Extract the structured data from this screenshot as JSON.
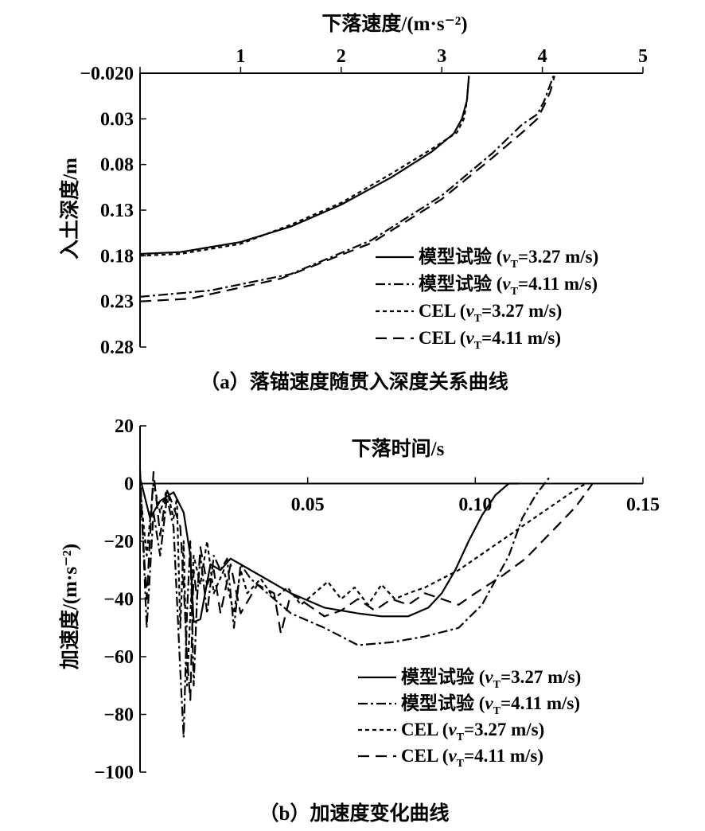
{
  "chart_data": [
    {
      "type": "line",
      "title": "下落速度/(m·s⁻²)",
      "caption": "（a）落锚速度随贯入深度关系曲线",
      "xlabel": "下落速度/(m·s⁻²)",
      "ylabel": "入土深度/m",
      "xlim": [
        0,
        5
      ],
      "ylim": [
        -0.02,
        0.28
      ],
      "x_ticks": [
        0,
        1,
        2,
        3,
        4,
        5
      ],
      "x_tick_labels": [
        "",
        "1",
        "2",
        "3",
        "4",
        "5"
      ],
      "y_ticks": [
        -0.02,
        0.03,
        0.08,
        0.13,
        0.18,
        0.23,
        0.28
      ],
      "y_tick_labels": [
        "−0.020",
        "0.03",
        "0.08",
        "0.13",
        "0.18",
        "0.23",
        "0.28"
      ],
      "legend_position": "bottom-right",
      "series": [
        {
          "name": "模型试验",
          "vT": "3.27 m/s",
          "style": "solid",
          "x": [
            0.0,
            0.4,
            1.0,
            1.5,
            2.0,
            2.5,
            2.9,
            3.12,
            3.2,
            3.25,
            3.27
          ],
          "y": [
            0.178,
            0.176,
            0.165,
            0.148,
            0.124,
            0.094,
            0.066,
            0.046,
            0.03,
            0.01,
            -0.017
          ]
        },
        {
          "name": "模型试验",
          "vT": "4.11 m/s",
          "style": "dashdot",
          "x": [
            0.0,
            0.7,
            1.5,
            2.3,
            3.0,
            3.5,
            3.8,
            3.95,
            4.02,
            4.07,
            4.11
          ],
          "y": [
            0.225,
            0.218,
            0.2,
            0.163,
            0.114,
            0.068,
            0.036,
            0.025,
            0.01,
            -0.005,
            -0.017
          ]
        },
        {
          "name": "CEL",
          "vT": "3.27 m/s",
          "style": "dotted",
          "x": [
            0.0,
            0.4,
            1.0,
            1.5,
            2.0,
            2.5,
            2.9,
            3.15,
            3.22,
            3.25,
            3.27
          ],
          "y": [
            0.18,
            0.178,
            0.167,
            0.146,
            0.122,
            0.09,
            0.063,
            0.045,
            0.03,
            0.01,
            -0.017
          ]
        },
        {
          "name": "CEL",
          "vT": "4.11 m/s",
          "style": "dashed",
          "x": [
            0.0,
            0.5,
            1.4,
            2.3,
            3.0,
            3.5,
            3.8,
            3.95,
            4.02,
            4.08,
            4.12
          ],
          "y": [
            0.23,
            0.227,
            0.205,
            0.166,
            0.118,
            0.073,
            0.045,
            0.03,
            0.015,
            0.0,
            -0.017
          ]
        }
      ],
      "legend": [
        {
          "text": "模型试验 (",
          "v": "v",
          "sub": "T",
          "value": "=3.27 m/s)",
          "style": "solid"
        },
        {
          "text": "模型试验 (",
          "v": "v",
          "sub": "T",
          "value": "=4.11 m/s)",
          "style": "dashdot"
        },
        {
          "text": "CEL (",
          "v": "v",
          "sub": "T",
          "value": "=3.27 m/s)",
          "style": "dotted"
        },
        {
          "text": "CEL (",
          "v": "v",
          "sub": "T",
          "value": "=4.11 m/s)",
          "style": "dashed"
        }
      ]
    },
    {
      "type": "line",
      "title": "下落时间/s",
      "caption": "（b）加速度变化曲线",
      "xlabel": "下落时间/s",
      "ylabel": "加速度/(m·s⁻²)",
      "xlim": [
        0,
        0.15
      ],
      "ylim": [
        -100,
        20
      ],
      "x_ticks": [
        0,
        0.05,
        0.1,
        0.15
      ],
      "x_tick_labels": [
        "",
        "0.05",
        "0.10",
        "0.15"
      ],
      "y_ticks": [
        20,
        0,
        -20,
        -40,
        -60,
        -80,
        -100
      ],
      "y_tick_labels": [
        "20",
        "0",
        "−20",
        "−40",
        "−60",
        "−80",
        "−100"
      ],
      "legend_position": "bottom-right",
      "series": [
        {
          "name": "模型试验",
          "vT": "3.27 m/s",
          "style": "solid",
          "t": [
            0,
            0.003,
            0.006,
            0.01,
            0.013,
            0.015,
            0.016,
            0.018,
            0.021,
            0.024,
            0.027,
            0.03,
            0.036,
            0.045,
            0.055,
            0.065,
            0.072,
            0.08,
            0.086,
            0.09,
            0.094,
            0.098,
            0.102,
            0.106,
            0.11,
            0.113
          ],
          "a": [
            2,
            -12,
            -6,
            -3,
            -10,
            -25,
            -48,
            -47,
            -28,
            -30,
            -26,
            -28,
            -32,
            -38,
            -43,
            -45,
            -46,
            -46,
            -43,
            -38,
            -30,
            -20,
            -11,
            -4,
            0,
            0
          ]
        },
        {
          "name": "模型试验",
          "vT": "4.11 m/s",
          "style": "dashdot",
          "t": [
            0,
            0.002,
            0.004,
            0.006,
            0.008,
            0.01,
            0.012,
            0.013,
            0.014,
            0.015,
            0.016,
            0.017,
            0.018,
            0.02,
            0.022,
            0.024,
            0.026,
            0.028,
            0.03,
            0.033,
            0.038,
            0.045,
            0.055,
            0.065,
            0.075,
            0.085,
            0.095,
            0.102,
            0.11,
            0.114,
            0.118,
            0.122
          ],
          "a": [
            5,
            -50,
            -10,
            -25,
            -5,
            -15,
            -65,
            -88,
            -45,
            -20,
            -70,
            -40,
            -25,
            -45,
            -25,
            -30,
            -26,
            -50,
            -28,
            -33,
            -38,
            -45,
            -50,
            -56,
            -55,
            -53,
            -50,
            -42,
            -25,
            -12,
            -4,
            2
          ]
        },
        {
          "name": "CEL",
          "vT": "3.27 m/s",
          "style": "dotted",
          "t": [
            0,
            0.002,
            0.004,
            0.006,
            0.008,
            0.01,
            0.011,
            0.012,
            0.013,
            0.014,
            0.015,
            0.016,
            0.018,
            0.02,
            0.022,
            0.025,
            0.028,
            0.03,
            0.032,
            0.036,
            0.04,
            0.044,
            0.048,
            0.052,
            0.056,
            0.06,
            0.064,
            0.068,
            0.072,
            0.076,
            0.08,
            0.085,
            0.09,
            0.095,
            0.1,
            0.105,
            0.11,
            0.115,
            0.12,
            0.125,
            0.13,
            0.133
          ],
          "a": [
            -2,
            -25,
            0,
            -10,
            -2,
            -12,
            -5,
            -50,
            -20,
            -70,
            -45,
            -25,
            -35,
            -20,
            -38,
            -30,
            -45,
            -30,
            -38,
            -33,
            -40,
            -36,
            -42,
            -38,
            -34,
            -40,
            -36,
            -42,
            -35,
            -40,
            -38,
            -36,
            -33,
            -30,
            -26,
            -22,
            -18,
            -14,
            -10,
            -6,
            -2,
            0
          ]
        },
        {
          "name": "CEL",
          "vT": "4.11 m/s",
          "style": "dashed",
          "t": [
            0,
            0.002,
            0.004,
            0.006,
            0.008,
            0.01,
            0.012,
            0.013,
            0.014,
            0.015,
            0.016,
            0.017,
            0.018,
            0.02,
            0.022,
            0.024,
            0.027,
            0.03,
            0.035,
            0.04,
            0.042,
            0.045,
            0.05,
            0.055,
            0.06,
            0.065,
            0.07,
            0.075,
            0.08,
            0.085,
            0.09,
            0.095,
            0.1,
            0.108,
            0.115,
            0.12,
            0.125,
            0.13,
            0.135
          ],
          "a": [
            -2,
            -40,
            4,
            -18,
            -2,
            -8,
            -15,
            -35,
            -60,
            -75,
            -30,
            -40,
            -22,
            -35,
            -30,
            -45,
            -28,
            -45,
            -35,
            -38,
            -52,
            -38,
            -42,
            -46,
            -44,
            -40,
            -44,
            -40,
            -42,
            -38,
            -40,
            -42,
            -38,
            -32,
            -26,
            -20,
            -14,
            -8,
            0
          ]
        }
      ],
      "legend": [
        {
          "text": "模型试验 (",
          "v": "v",
          "sub": "T",
          "value": "=3.27 m/s)",
          "style": "solid"
        },
        {
          "text": "模型试验 (",
          "v": "v",
          "sub": "T",
          "value": "=4.11 m/s)",
          "style": "dashdot"
        },
        {
          "text": "CEL (",
          "v": "v",
          "sub": "T",
          "value": "=3.27 m/s)",
          "style": "dotted"
        },
        {
          "text": "CEL (",
          "v": "v",
          "sub": "T",
          "value": "=4.11 m/s)",
          "style": "dashed"
        }
      ]
    }
  ]
}
